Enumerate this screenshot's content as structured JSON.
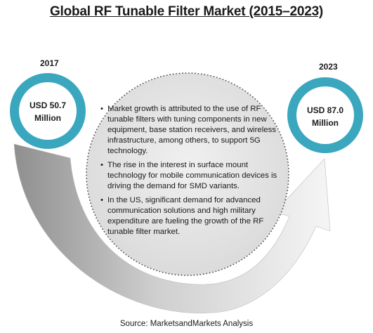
{
  "title": "Global RF Tunable Filter Market (2015–2023)",
  "left": {
    "year": "2017",
    "value_line1": "USD 50.7",
    "value_line2": "Million"
  },
  "right": {
    "year": "2023",
    "value_line1": "USD 87.0",
    "value_line2": "Million"
  },
  "bullets": [
    "Market growth is attributed to the use of RF tunable filters with tuning components in new equipment, base station receivers, and wireless infrastructure, among others, to support 5G technology.",
    "The rise in the interest in surface mount technology for mobile communication devices is driving the demand for SMD variants.",
    "In the US, significant demand for advanced communication solutions and high military expenditure are fueling the growth of the RF tunable filter market."
  ],
  "source": "Source: MarketsandMarkets Analysis",
  "colors": {
    "ring": "#3aa7bf",
    "arrow_dark": "#8f8f8f",
    "arrow_light": "#f2f2f2",
    "center_fill": "#e4e4e4",
    "dotted_border": "#444444"
  }
}
